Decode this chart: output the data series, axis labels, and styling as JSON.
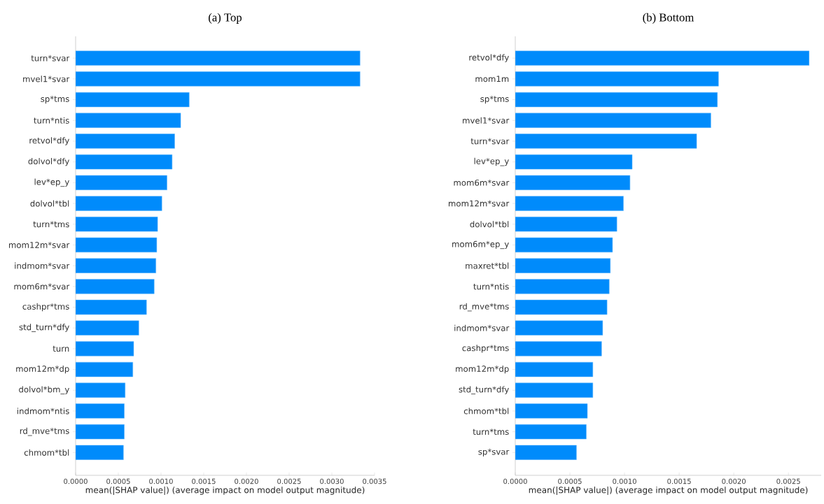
{
  "chart_data": [
    {
      "type": "bar",
      "orientation": "horizontal",
      "title": "(a) Top",
      "xlabel": "mean(|SHAP value|) (average impact on model output magnitude)",
      "color": "#008bfb",
      "categories": [
        "turn*svar",
        "mvel1*svar",
        "sp*tms",
        "turn*ntis",
        "retvol*dfy",
        "dolvol*dfy",
        "lev*ep_y",
        "dolvol*tbl",
        "turn*tms",
        "mom12m*svar",
        "indmom*svar",
        "mom6m*svar",
        "cashpr*tms",
        "std_turn*dfy",
        "turn",
        "mom12m*dp",
        "dolvol*bm_y",
        "indmom*ntis",
        "rd_mve*tms",
        "chmom*tbl"
      ],
      "values": [
        0.00333,
        0.00333,
        0.00133,
        0.00123,
        0.00116,
        0.00113,
        0.00107,
        0.00101,
        0.00096,
        0.00095,
        0.00094,
        0.00092,
        0.00083,
        0.00074,
        0.00068,
        0.00067,
        0.00058,
        0.00057,
        0.00057,
        0.00056
      ],
      "xlim": [
        0,
        0.0035
      ],
      "xticks": [
        {
          "value": 0,
          "label": "0.0000"
        },
        {
          "value": 0.0005,
          "label": "0.0005"
        },
        {
          "value": 0.001,
          "label": "0.0010"
        },
        {
          "value": 0.0015,
          "label": "0.0015"
        },
        {
          "value": 0.002,
          "label": "0.0020"
        },
        {
          "value": 0.0025,
          "label": "0.0025"
        },
        {
          "value": 0.003,
          "label": "0.0030"
        },
        {
          "value": 0.0035,
          "label": "0.0035"
        }
      ]
    },
    {
      "type": "bar",
      "orientation": "horizontal",
      "title": "(b) Bottom",
      "xlabel": "mean(|SHAP value|) (average impact on model output magnitude)",
      "color": "#008bfb",
      "categories": [
        "retvol*dfy",
        "mom1m",
        "sp*tms",
        "mvel1*svar",
        "turn*svar",
        "lev*ep_y",
        "mom6m*svar",
        "mom12m*svar",
        "dolvol*tbl",
        "mom6m*ep_y",
        "maxret*tbl",
        "turn*ntis",
        "rd_mve*tms",
        "indmom*svar",
        "cashpr*tms",
        "mom12m*dp",
        "std_turn*dfy",
        "chmom*tbl",
        "turn*tms",
        "sp*svar"
      ],
      "values": [
        0.00269,
        0.00186,
        0.00185,
        0.00179,
        0.00166,
        0.00107,
        0.00105,
        0.00099,
        0.00093,
        0.00089,
        0.00087,
        0.00086,
        0.00084,
        0.0008,
        0.00079,
        0.00071,
        0.00071,
        0.00066,
        0.00065,
        0.00056
      ],
      "xlim": [
        0,
        0.0028
      ],
      "xticks": [
        {
          "value": 0,
          "label": "0.0000"
        },
        {
          "value": 0.0005,
          "label": "0.0005"
        },
        {
          "value": 0.001,
          "label": "0.0010"
        },
        {
          "value": 0.0015,
          "label": "0.0015"
        },
        {
          "value": 0.002,
          "label": "0.0020"
        },
        {
          "value": 0.0025,
          "label": "0.0025"
        }
      ]
    }
  ]
}
